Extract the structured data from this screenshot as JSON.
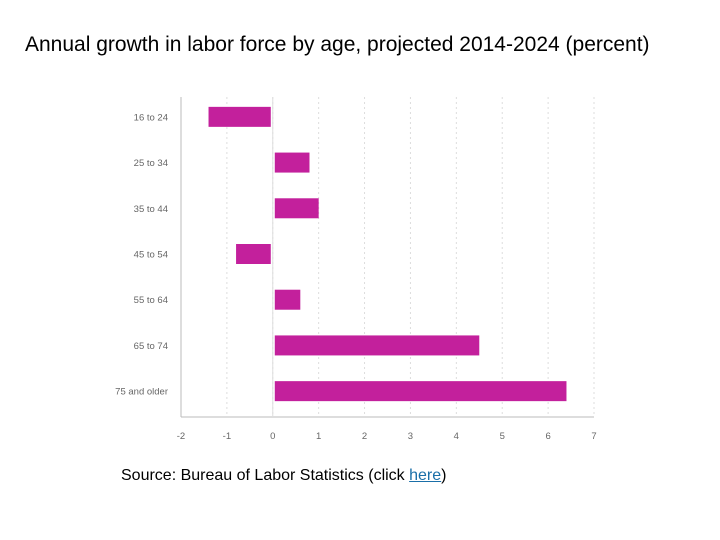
{
  "title": "Annual growth in labor force by age, projected 2014-2024 (percent)",
  "source": {
    "prefix": "Source: Bureau of Labor Statistics (click ",
    "link_text": "here",
    "suffix": ")"
  },
  "colors": {
    "bar": "#c3209c",
    "grid": "#dddddd",
    "axis": "#bbbbbb",
    "link": "#1a6fa8"
  },
  "chart_data": {
    "type": "bar",
    "orientation": "horizontal",
    "title": "Annual growth in labor force by age, projected 2014-2024 (percent)",
    "xlabel": "",
    "ylabel": "",
    "categories": [
      "16 to 24",
      "25 to 34",
      "35 to 44",
      "45 to 54",
      "55 to 64",
      "65 to 74",
      "75 and older"
    ],
    "values": [
      -1.4,
      0.8,
      1.0,
      -0.8,
      0.6,
      4.5,
      6.4
    ],
    "xlim": [
      -2,
      7
    ],
    "xticks": [
      "-2",
      "-1",
      "0",
      "1",
      "2",
      "3",
      "4",
      "5",
      "6",
      "7"
    ],
    "grid": true,
    "legend": "none"
  }
}
